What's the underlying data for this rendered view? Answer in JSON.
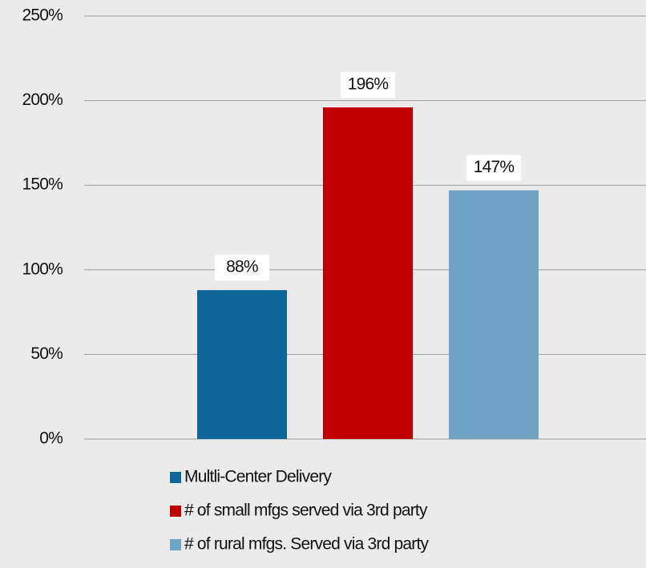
{
  "chart_data": {
    "type": "bar",
    "series": [
      {
        "name": "Multli-Center Delivery",
        "color": "#0e6699",
        "values": [
          88
        ],
        "value_labels": [
          "88%"
        ]
      },
      {
        "name": "# of small mfgs served via 3rd party",
        "color": "#c00000",
        "values": [
          196
        ],
        "value_labels": [
          "196%"
        ]
      },
      {
        "name": "# of rural mfgs. Served via 3rd party",
        "color": "#71a3c5",
        "values": [
          147
        ],
        "value_labels": [
          "147%"
        ]
      }
    ],
    "ylim": [
      0,
      250
    ],
    "yticks": [
      {
        "value": 0,
        "label": "0%"
      },
      {
        "value": 50,
        "label": "50%"
      },
      {
        "value": 100,
        "label": "100%"
      },
      {
        "value": 150,
        "label": "150%"
      },
      {
        "value": 200,
        "label": "200%"
      },
      {
        "value": 250,
        "label": "250%"
      }
    ],
    "grid": true
  }
}
